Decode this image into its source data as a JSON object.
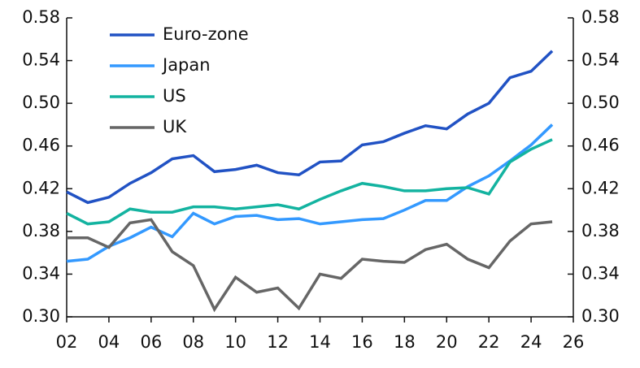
{
  "chart_data": {
    "type": "line",
    "x": [
      2,
      3,
      4,
      5,
      6,
      7,
      8,
      9,
      10,
      11,
      12,
      13,
      14,
      15,
      16,
      17,
      18,
      19,
      20,
      21,
      22,
      23,
      24,
      25
    ],
    "series": [
      {
        "name": "Euro-zone",
        "color": "#2152c4",
        "values": [
          0.417,
          0.407,
          0.412,
          0.425,
          0.435,
          0.448,
          0.451,
          0.436,
          0.438,
          0.442,
          0.435,
          0.433,
          0.445,
          0.446,
          0.461,
          0.464,
          0.472,
          0.479,
          0.476,
          0.49,
          0.5,
          0.524,
          0.53,
          0.549
        ]
      },
      {
        "name": "Japan",
        "color": "#3399ff",
        "values": [
          0.352,
          0.354,
          0.366,
          0.374,
          0.384,
          0.375,
          0.397,
          0.387,
          0.394,
          0.395,
          0.391,
          0.392,
          0.387,
          0.389,
          0.391,
          0.392,
          0.4,
          0.409,
          0.409,
          0.422,
          0.432,
          0.446,
          0.461,
          0.48
        ]
      },
      {
        "name": "US",
        "color": "#13b3a0",
        "values": [
          0.397,
          0.387,
          0.389,
          0.401,
          0.398,
          0.398,
          0.403,
          0.403,
          0.401,
          0.403,
          0.405,
          0.401,
          0.41,
          0.418,
          0.425,
          0.422,
          0.418,
          0.418,
          0.42,
          0.421,
          0.415,
          0.445,
          0.457,
          0.466
        ]
      },
      {
        "name": "UK",
        "color": "#666666",
        "values": [
          0.374,
          0.374,
          0.365,
          0.388,
          0.391,
          0.361,
          0.348,
          0.307,
          0.337,
          0.323,
          0.327,
          0.308,
          0.34,
          0.336,
          0.354,
          0.352,
          0.351,
          0.363,
          0.368,
          0.354,
          0.346,
          0.371,
          0.387,
          0.389
        ]
      }
    ],
    "xlim": [
      2,
      26
    ],
    "xticks": [
      {
        "value": 2,
        "label": "02"
      },
      {
        "value": 4,
        "label": "04"
      },
      {
        "value": 6,
        "label": "06"
      },
      {
        "value": 8,
        "label": "08"
      },
      10,
      12,
      14,
      16,
      18,
      20,
      22,
      24,
      26
    ],
    "ylim": [
      0.3,
      0.58
    ],
    "yticks": [
      {
        "value": 0.3,
        "label": "0.30"
      },
      0.34,
      0.38,
      0.42,
      0.46,
      {
        "value": 0.5,
        "label": "0.50"
      },
      0.54,
      0.58
    ],
    "y2lim": [
      0.3,
      0.58
    ],
    "y2ticks": [
      {
        "value": 0.3,
        "label": "0.30"
      },
      0.34,
      0.38,
      0.42,
      0.46,
      {
        "value": 0.5,
        "label": "0.50"
      },
      0.54,
      0.58
    ]
  }
}
